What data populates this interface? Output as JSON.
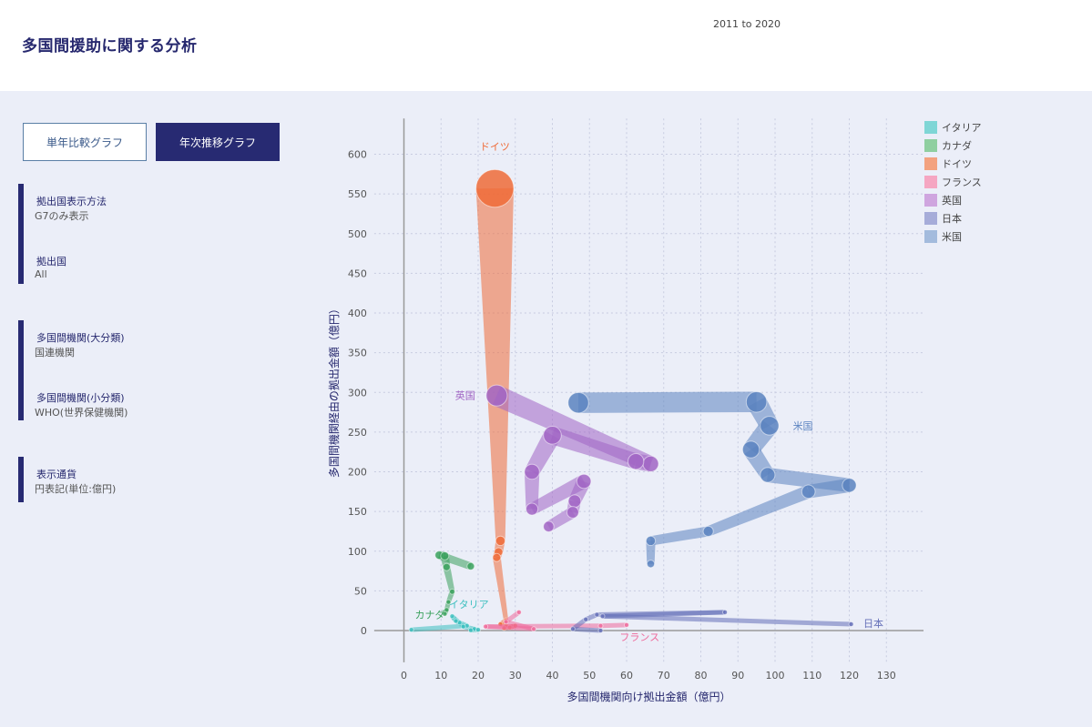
{
  "header": {
    "title": "多国間援助に関する分析",
    "range": "2011 to 2020"
  },
  "buttons": {
    "single": "単年比較グラフ",
    "yearly": "年次推移グラフ"
  },
  "filters": {
    "display_method_label": "拠出国表示方法",
    "display_method_value": "G7のみ表示",
    "country_label": "拠出国",
    "country_value": "All",
    "org_major_label": "多国間機関(大分類)",
    "org_major_value": "国連機関",
    "org_minor_label": "多国間機関(小分類)",
    "org_minor_value": "WHO(世界保健機関)",
    "currency_label": "表示通貨",
    "currency_value": "円表記(単位:億円)"
  },
  "chart_data": {
    "type": "scatter",
    "xlabel": "多国間機関向け拠出金額（億円）",
    "ylabel": "多国間機関経由の拠出金額（億円）",
    "xlim": [
      -8,
      140
    ],
    "ylim": [
      -40,
      645
    ],
    "xticks": [
      0,
      10,
      20,
      30,
      40,
      50,
      60,
      70,
      80,
      90,
      100,
      110,
      120,
      130
    ],
    "yticks": [
      0,
      50,
      100,
      150,
      200,
      250,
      300,
      350,
      400,
      450,
      500,
      550,
      600
    ],
    "grid": true,
    "legend_position": "top-right",
    "series": [
      {
        "name": "イタリア",
        "color": "#3dbfbf",
        "legend_color": "#7fd6d6",
        "points": [
          [
            2,
            1
          ],
          [
            17,
            6
          ],
          [
            15,
            10
          ],
          [
            14,
            12
          ],
          [
            13,
            18
          ],
          [
            16,
            5
          ],
          [
            19,
            2
          ],
          [
            18,
            0.5
          ],
          [
            20,
            1
          ]
        ]
      },
      {
        "name": "カナダ",
        "color": "#3aa15d",
        "legend_color": "#8fcfa0",
        "points": [
          [
            18,
            81
          ],
          [
            9.5,
            95
          ],
          [
            11,
            94
          ],
          [
            11.5,
            80
          ],
          [
            13,
            49
          ],
          [
            12,
            36
          ],
          [
            11.5,
            26
          ],
          [
            11,
            21
          ]
        ]
      },
      {
        "name": "ドイツ",
        "color": "#ef6b38",
        "legend_color": "#f3a27f",
        "points": [
          [
            24.5,
            557
          ],
          [
            26,
            113
          ],
          [
            25.5,
            99
          ],
          [
            25,
            92
          ],
          [
            27.5,
            13
          ],
          [
            26,
            8
          ],
          [
            27.5,
            6
          ],
          [
            28.5,
            4
          ],
          [
            30,
            6
          ],
          [
            27,
            3
          ]
        ]
      },
      {
        "name": "フランス",
        "color": "#ee6a9b",
        "legend_color": "#f5a6c2",
        "points": [
          [
            31,
            23
          ],
          [
            27.5,
            11
          ],
          [
            35,
            2
          ],
          [
            22,
            5
          ],
          [
            53,
            6
          ],
          [
            60,
            7
          ]
        ]
      },
      {
        "name": "英国",
        "color": "#a165c4",
        "legend_color": "#cfa5df",
        "points": [
          [
            25,
            296
          ],
          [
            66.5,
            210
          ],
          [
            62.5,
            213
          ],
          [
            40,
            246
          ],
          [
            34.5,
            200
          ],
          [
            34.5,
            153
          ],
          [
            48.5,
            188
          ],
          [
            46,
            163
          ],
          [
            45.5,
            149
          ],
          [
            39,
            131
          ]
        ]
      },
      {
        "name": "日本",
        "color": "#6570b8",
        "legend_color": "#a6acd9",
        "points": [
          [
            120.5,
            8
          ],
          [
            53.5,
            18
          ],
          [
            86.5,
            23
          ],
          [
            52,
            20
          ],
          [
            49,
            14
          ],
          [
            45.5,
            2
          ],
          [
            53,
            0
          ]
        ]
      },
      {
        "name": "米国",
        "color": "#5b83c0",
        "legend_color": "#a3bbdd",
        "points": [
          [
            47,
            287
          ],
          [
            95,
            288
          ],
          [
            98.5,
            258
          ],
          [
            93.5,
            228
          ],
          [
            98,
            196
          ],
          [
            120,
            183
          ],
          [
            109,
            175
          ],
          [
            82,
            125
          ],
          [
            66.5,
            113
          ],
          [
            66.5,
            84
          ]
        ]
      }
    ],
    "annotations": [
      {
        "text": "ドイツ",
        "x": 24.5,
        "y": 610
      },
      {
        "text": "英国",
        "x": 16.5,
        "y": 296
      },
      {
        "text": "米国",
        "x": 107.5,
        "y": 258
      },
      {
        "text": "イタリア",
        "x": 17.5,
        "y": 33
      },
      {
        "text": "カナダ",
        "x": 7,
        "y": 20
      },
      {
        "text": "日本",
        "x": 126.5,
        "y": 9
      },
      {
        "text": "フランス",
        "x": 63.5,
        "y": -8
      }
    ]
  }
}
